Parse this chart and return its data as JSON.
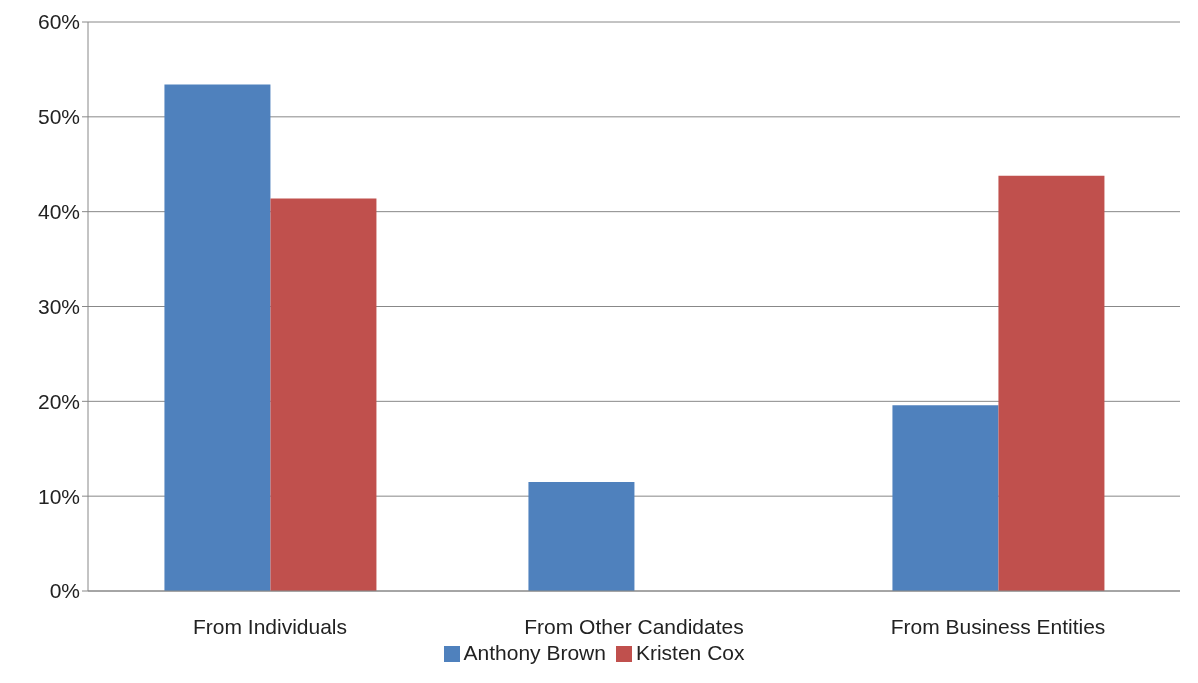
{
  "chart_data": {
    "type": "bar",
    "categories": [
      "From Individuals",
      "From Other Candidates",
      "From Business Entities"
    ],
    "series": [
      {
        "name": "Anthony Brown",
        "color": "#4f81bd",
        "values": [
          53.4,
          11.5,
          19.6
        ]
      },
      {
        "name": "Kristen Cox",
        "color": "#c0504d",
        "values": [
          41.4,
          0,
          43.8
        ]
      }
    ],
    "ylim": [
      0,
      60
    ],
    "yticks": [
      {
        "value": 0,
        "label": "0%"
      },
      {
        "value": 10,
        "label": "10%"
      },
      {
        "value": 20,
        "label": "20%"
      },
      {
        "value": 30,
        "label": "30%"
      },
      {
        "value": 40,
        "label": "40%"
      },
      {
        "value": 50,
        "label": "50%"
      },
      {
        "value": 60,
        "label": "60%"
      }
    ],
    "grid": "y",
    "legend": "bottom"
  }
}
